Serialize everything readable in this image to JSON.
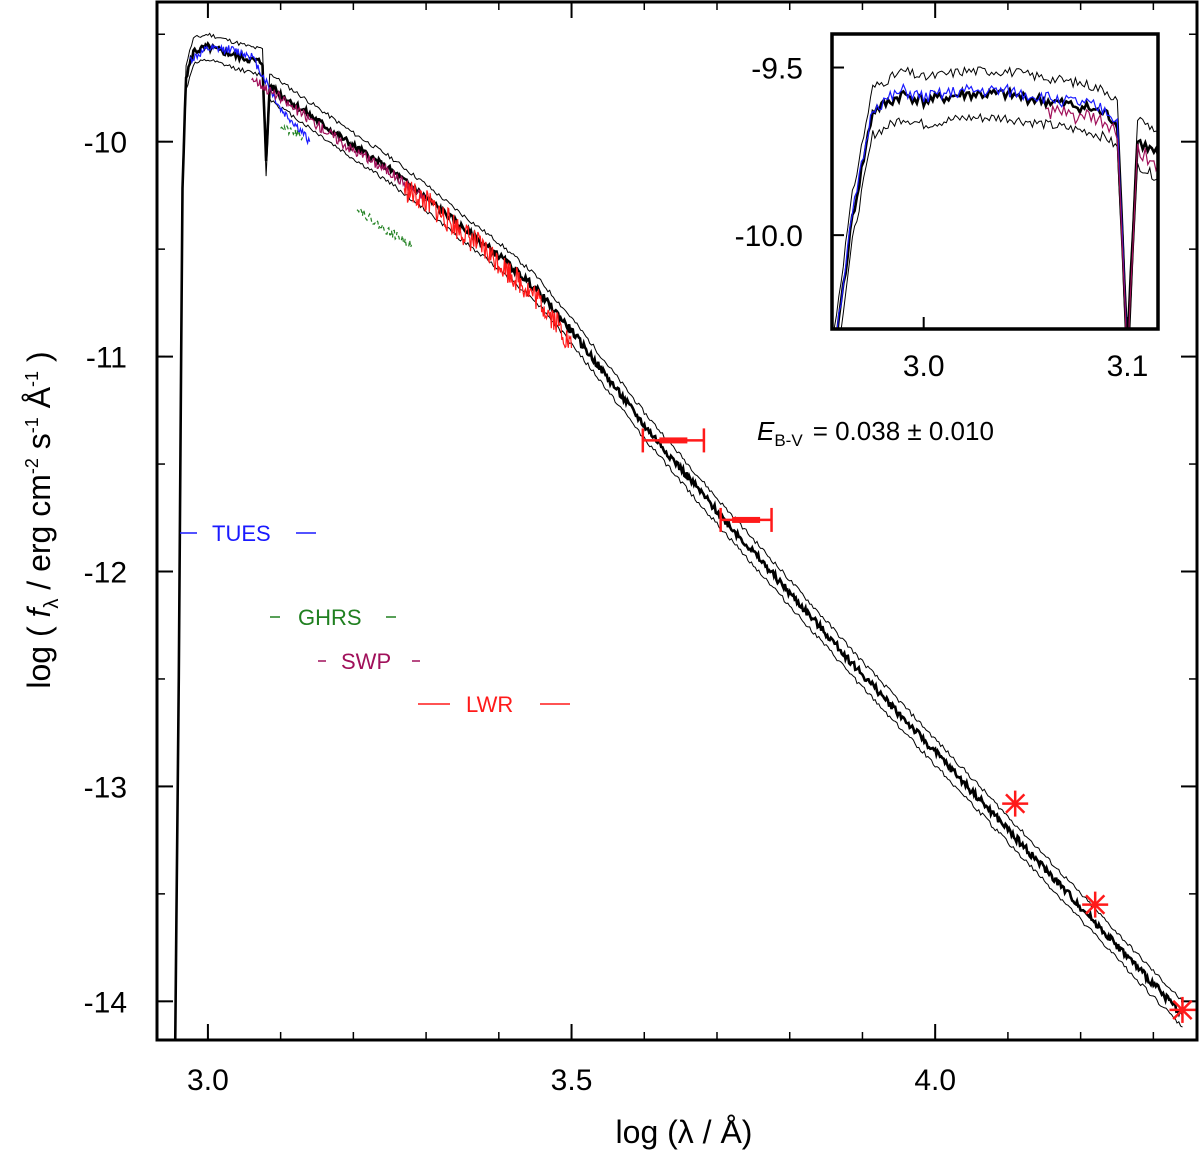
{
  "colors": {
    "model": "#000000",
    "TUES": "#1a1aff",
    "GHRS": "#208020",
    "SWP": "#a0105a",
    "LWR": "#ff1a1a",
    "photometry": "#ff1a1a"
  },
  "chart_data": {
    "type": "line",
    "title": "",
    "xlabel": "log (λ / Å)",
    "ylabel": "log ( f_λ / erg cm^-2 s^-1 Å^-1 )",
    "ylabel_parts": {
      "prefix": "log (",
      "f": "f",
      "lambda": "λ",
      "unit": "/ erg cm",
      "exp_cm": "-2",
      "s": "s",
      "exp_s": "-1",
      "A": "Å",
      "exp_A": "-1",
      "suffix": ")"
    },
    "xlim": [
      2.93,
      4.36
    ],
    "ylim": [
      -14.18,
      -9.35
    ],
    "xticks": [
      3.0,
      3.5,
      4.0
    ],
    "xtick_labels": [
      "3.0",
      "3.5",
      "4.0"
    ],
    "yticks": [
      -10,
      -11,
      -12,
      -13,
      -14
    ],
    "ytick_labels": [
      "-10",
      "-11",
      "-12",
      "-13",
      "-14"
    ],
    "annotation": {
      "E": "E",
      "sub": "B-V",
      "value": "= 0.038 ± 0.010"
    },
    "legend": [
      {
        "name": "TUES",
        "color_key": "TUES"
      },
      {
        "name": "GHRS",
        "color_key": "GHRS"
      },
      {
        "name": "SWP",
        "color_key": "SWP"
      },
      {
        "name": "LWR",
        "color_key": "LWR"
      }
    ],
    "series": [
      {
        "name": "model",
        "x": [
          2.955,
          2.96,
          2.965,
          2.97,
          2.98,
          3.0,
          3.02,
          3.04,
          3.06,
          3.075,
          3.08,
          3.085,
          3.1,
          3.15,
          3.2,
          3.25,
          3.3,
          3.35,
          3.4,
          3.45,
          3.5,
          3.6,
          3.7,
          3.8,
          3.9,
          4.0,
          4.1,
          4.2,
          4.3,
          4.34
        ],
        "y": [
          -14.2,
          -12.5,
          -10.2,
          -9.7,
          -9.58,
          -9.56,
          -9.58,
          -9.6,
          -9.62,
          -9.63,
          -10.1,
          -9.74,
          -9.78,
          -9.9,
          -10.02,
          -10.13,
          -10.26,
          -10.4,
          -10.53,
          -10.68,
          -10.88,
          -11.32,
          -11.72,
          -12.1,
          -12.48,
          -12.84,
          -13.2,
          -13.56,
          -13.92,
          -14.06
        ]
      },
      {
        "name": "TUES",
        "x": [
          2.975,
          3.0,
          3.03,
          3.06,
          3.085,
          3.1,
          3.12,
          3.14
        ],
        "y": [
          -9.62,
          -9.57,
          -9.57,
          -9.6,
          -9.75,
          -9.85,
          -9.92,
          -10.0
        ]
      },
      {
        "name": "GHRS",
        "x": [
          3.1,
          3.11,
          3.12,
          3.13,
          3.205,
          3.22,
          3.24,
          3.26,
          3.28
        ],
        "y": [
          -9.92,
          -9.95,
          -9.96,
          -9.98,
          -10.3,
          -10.35,
          -10.4,
          -10.44,
          -10.48
        ]
      },
      {
        "name": "SWP",
        "x": [
          3.06,
          3.08,
          3.1,
          3.15,
          3.2,
          3.25,
          3.3
        ],
        "y": [
          -9.7,
          -9.75,
          -9.8,
          -9.92,
          -10.04,
          -10.14,
          -10.27
        ]
      },
      {
        "name": "LWR",
        "x": [
          3.27,
          3.3,
          3.35,
          3.4,
          3.45,
          3.48,
          3.5
        ],
        "y": [
          -10.22,
          -10.28,
          -10.42,
          -10.56,
          -10.72,
          -10.84,
          -10.96
        ]
      }
    ],
    "photometry": [
      {
        "x": 3.64,
        "y": -11.39,
        "xerr": 0.042,
        "kind": "errorbar"
      },
      {
        "x": 3.74,
        "y": -11.76,
        "xerr": 0.035,
        "kind": "errorbar"
      },
      {
        "x": 4.11,
        "y": -13.08,
        "xerr": 0.0,
        "kind": "star"
      },
      {
        "x": 4.22,
        "y": -13.55,
        "xerr": 0.0,
        "kind": "star"
      },
      {
        "x": 4.34,
        "y": -14.04,
        "xerr": 0.0,
        "kind": "star"
      }
    ],
    "inset": {
      "xlim": [
        2.955,
        3.115
      ],
      "ylim": [
        -10.28,
        -9.4
      ],
      "xticks": [
        3.0,
        3.1
      ],
      "xtick_labels": [
        "3.0",
        "3.1"
      ],
      "yticks": [
        -9.5,
        -10.0
      ],
      "ytick_labels": [
        "-9.5",
        "-10.0"
      ]
    }
  }
}
